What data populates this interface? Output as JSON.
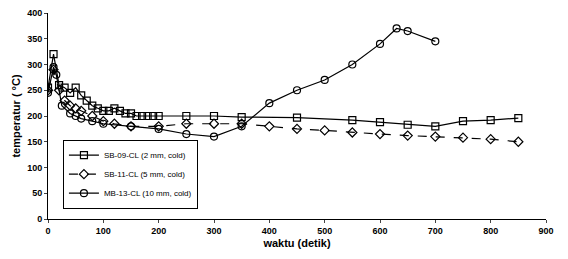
{
  "chart_data": {
    "type": "line",
    "x_label": "waktu (detik)",
    "y_label": "temperatur ( °C)",
    "xlim": [
      0,
      900
    ],
    "xticks": [
      0,
      100,
      200,
      300,
      400,
      500,
      600,
      700,
      800,
      900
    ],
    "ylim": [
      0,
      400
    ],
    "yticks": [
      0,
      50,
      100,
      150,
      200,
      250,
      300,
      350,
      400
    ],
    "grid": false,
    "legend": "bottom left",
    "series": [
      {
        "name": "SB-09-CL (2 mm, cold)",
        "color": "#000000",
        "marker": "square",
        "line_style": "solid",
        "x": [
          0,
          10,
          20,
          30,
          40,
          50,
          60,
          70,
          80,
          90,
          100,
          110,
          120,
          130,
          140,
          150,
          160,
          170,
          180,
          190,
          200,
          250,
          300,
          350,
          450,
          550,
          600,
          650,
          700,
          750,
          800,
          850
        ],
        "values": [
          255,
          320,
          260,
          255,
          245,
          255,
          240,
          230,
          220,
          215,
          210,
          210,
          215,
          210,
          205,
          205,
          200,
          200,
          200,
          200,
          200,
          200,
          200,
          198,
          197,
          192,
          188,
          183,
          180,
          190,
          192,
          196
        ]
      },
      {
        "name": "SB-11-CL (5 mm, cold)",
        "color": "#000000",
        "marker": "diamond",
        "line_style": "dash",
        "x": [
          0,
          10,
          20,
          30,
          40,
          50,
          60,
          80,
          100,
          120,
          150,
          200,
          250,
          300,
          350,
          400,
          450,
          500,
          550,
          600,
          650,
          700,
          750,
          800,
          850
        ],
        "values": [
          250,
          290,
          250,
          230,
          220,
          215,
          210,
          200,
          190,
          185,
          180,
          180,
          185,
          185,
          185,
          180,
          175,
          172,
          168,
          165,
          162,
          160,
          158,
          155,
          150
        ]
      },
      {
        "name": "MB-13-CL (10 mm, cold)",
        "color": "#000000",
        "marker": "circle",
        "line_style": "solid",
        "x": [
          0,
          10,
          15,
          25,
          40,
          50,
          60,
          80,
          100,
          150,
          200,
          250,
          300,
          350,
          400,
          450,
          500,
          550,
          600,
          630,
          650,
          700
        ],
        "values": [
          245,
          295,
          280,
          220,
          205,
          200,
          195,
          190,
          185,
          180,
          175,
          165,
          160,
          180,
          225,
          250,
          270,
          300,
          340,
          370,
          365,
          345
        ]
      }
    ]
  }
}
